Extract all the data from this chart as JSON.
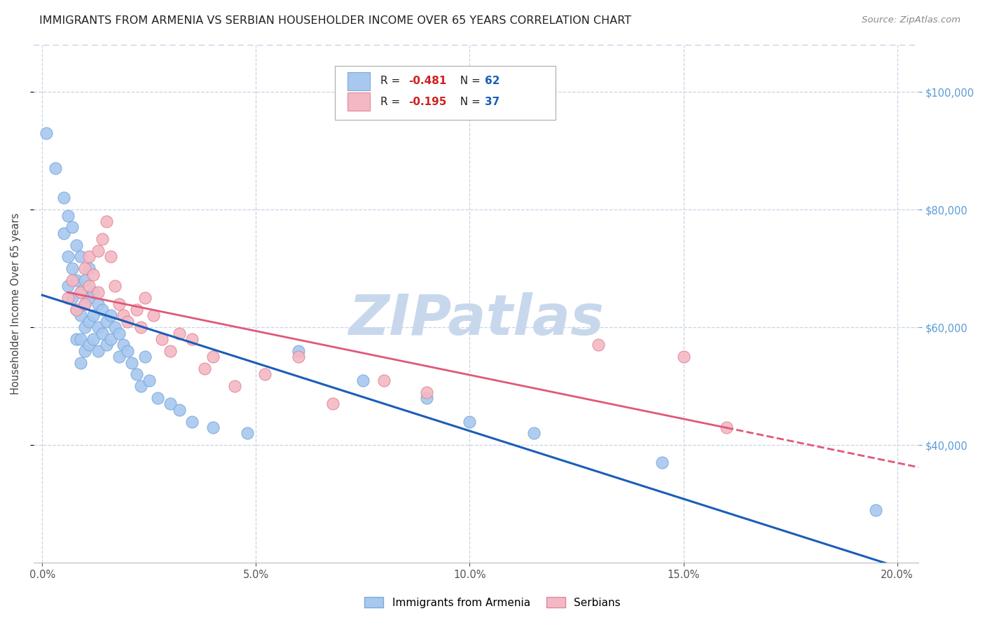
{
  "title": "IMMIGRANTS FROM ARMENIA VS SERBIAN HOUSEHOLDER INCOME OVER 65 YEARS CORRELATION CHART",
  "source": "Source: ZipAtlas.com",
  "ylabel": "Householder Income Over 65 years",
  "xlabel_ticks": [
    0.0,
    0.05,
    0.1,
    0.15,
    0.2
  ],
  "ytick_values": [
    40000,
    60000,
    80000,
    100000
  ],
  "armenia_R": "-0.481",
  "armenia_N": "62",
  "serbian_R": "-0.195",
  "serbian_N": "37",
  "armenia_color": "#a8c8f0",
  "armenia_edge": "#7aaad8",
  "serbian_color": "#f4b8c4",
  "serbian_edge": "#e08898",
  "armenia_line_color": "#1a5eb8",
  "serbian_line_color": "#e05878",
  "watermark_color": "#c8d8ec",
  "background_color": "#ffffff",
  "grid_color": "#c8d4e4",
  "xlim": [
    -0.002,
    0.205
  ],
  "ylim": [
    20000,
    108000
  ],
  "armenia_x": [
    0.001,
    0.003,
    0.005,
    0.005,
    0.006,
    0.006,
    0.006,
    0.007,
    0.007,
    0.007,
    0.008,
    0.008,
    0.008,
    0.008,
    0.009,
    0.009,
    0.009,
    0.009,
    0.009,
    0.01,
    0.01,
    0.01,
    0.01,
    0.011,
    0.011,
    0.011,
    0.011,
    0.012,
    0.012,
    0.012,
    0.013,
    0.013,
    0.013,
    0.014,
    0.014,
    0.015,
    0.015,
    0.016,
    0.016,
    0.017,
    0.018,
    0.018,
    0.019,
    0.02,
    0.021,
    0.022,
    0.023,
    0.024,
    0.025,
    0.027,
    0.03,
    0.032,
    0.035,
    0.04,
    0.048,
    0.06,
    0.075,
    0.09,
    0.1,
    0.115,
    0.145,
    0.195
  ],
  "armenia_y": [
    93000,
    87000,
    82000,
    76000,
    79000,
    72000,
    67000,
    77000,
    70000,
    65000,
    74000,
    68000,
    63000,
    58000,
    72000,
    66000,
    62000,
    58000,
    54000,
    68000,
    64000,
    60000,
    56000,
    70000,
    65000,
    61000,
    57000,
    66000,
    62000,
    58000,
    64000,
    60000,
    56000,
    63000,
    59000,
    61000,
    57000,
    62000,
    58000,
    60000,
    59000,
    55000,
    57000,
    56000,
    54000,
    52000,
    50000,
    55000,
    51000,
    48000,
    47000,
    46000,
    44000,
    43000,
    42000,
    56000,
    51000,
    48000,
    44000,
    42000,
    37000,
    29000
  ],
  "serbian_x": [
    0.006,
    0.007,
    0.008,
    0.009,
    0.01,
    0.01,
    0.011,
    0.011,
    0.012,
    0.013,
    0.013,
    0.014,
    0.015,
    0.016,
    0.017,
    0.018,
    0.019,
    0.02,
    0.022,
    0.023,
    0.024,
    0.026,
    0.028,
    0.03,
    0.032,
    0.035,
    0.038,
    0.04,
    0.045,
    0.052,
    0.06,
    0.068,
    0.08,
    0.09,
    0.13,
    0.15,
    0.16
  ],
  "serbian_y": [
    65000,
    68000,
    63000,
    66000,
    70000,
    64000,
    72000,
    67000,
    69000,
    73000,
    66000,
    75000,
    78000,
    72000,
    67000,
    64000,
    62000,
    61000,
    63000,
    60000,
    65000,
    62000,
    58000,
    56000,
    59000,
    58000,
    53000,
    55000,
    50000,
    52000,
    55000,
    47000,
    51000,
    49000,
    57000,
    55000,
    43000
  ]
}
